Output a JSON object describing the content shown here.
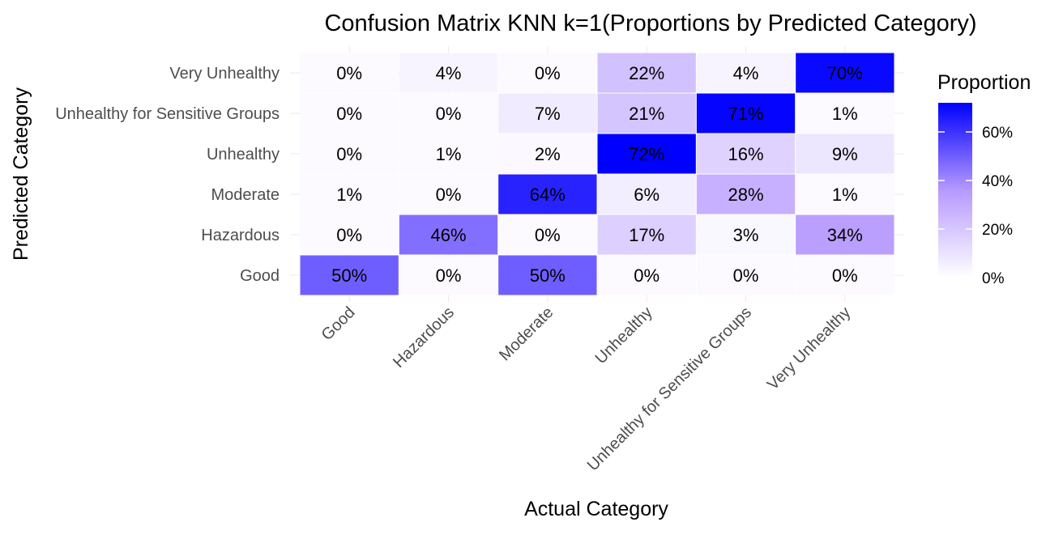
{
  "chart_data": {
    "type": "heatmap",
    "title": "Confusion Matrix KNN k=1(Proportions by Predicted Category)",
    "xlabel": "Actual Category",
    "ylabel": "Predicted Category",
    "x_categories": [
      "Good",
      "Hazardous",
      "Moderate",
      "Unhealthy",
      "Unhealthy for Sensitive Groups",
      "Very Unhealthy"
    ],
    "y_categories": [
      "Good",
      "Hazardous",
      "Moderate",
      "Unhealthy",
      "Unhealthy for Sensitive Groups",
      "Very Unhealthy"
    ],
    "values": [
      [
        50,
        0,
        50,
        0,
        0,
        0
      ],
      [
        0,
        46,
        0,
        17,
        3,
        34
      ],
      [
        1,
        0,
        64,
        6,
        28,
        1
      ],
      [
        0,
        1,
        2,
        72,
        16,
        9
      ],
      [
        0,
        0,
        7,
        21,
        71,
        1
      ],
      [
        0,
        4,
        0,
        22,
        4,
        70
      ]
    ],
    "labels": [
      [
        "50%",
        "0%",
        "50%",
        "0%",
        "0%",
        "0%"
      ],
      [
        "0%",
        "46%",
        "0%",
        "17%",
        "3%",
        "34%"
      ],
      [
        "1%",
        "0%",
        "64%",
        "6%",
        "28%",
        "1%"
      ],
      [
        "0%",
        "1%",
        "2%",
        "72%",
        "16%",
        "9%"
      ],
      [
        "0%",
        "0%",
        "7%",
        "21%",
        "71%",
        "1%"
      ],
      [
        "0%",
        "4%",
        "0%",
        "22%",
        "4%",
        "70%"
      ]
    ],
    "legend": {
      "title": "Proportion",
      "position": "right",
      "ticks": [
        0,
        20,
        40,
        60
      ],
      "tick_labels": [
        "0%",
        "20%",
        "40%",
        "60%"
      ],
      "min": 0,
      "max": 72
    },
    "colors": {
      "low": "#ffffff",
      "mid": "#9966ff",
      "high": "#0000ff",
      "text": "#000000",
      "axis_text": "#4d4d4d",
      "grid": "#ebebeb"
    }
  }
}
